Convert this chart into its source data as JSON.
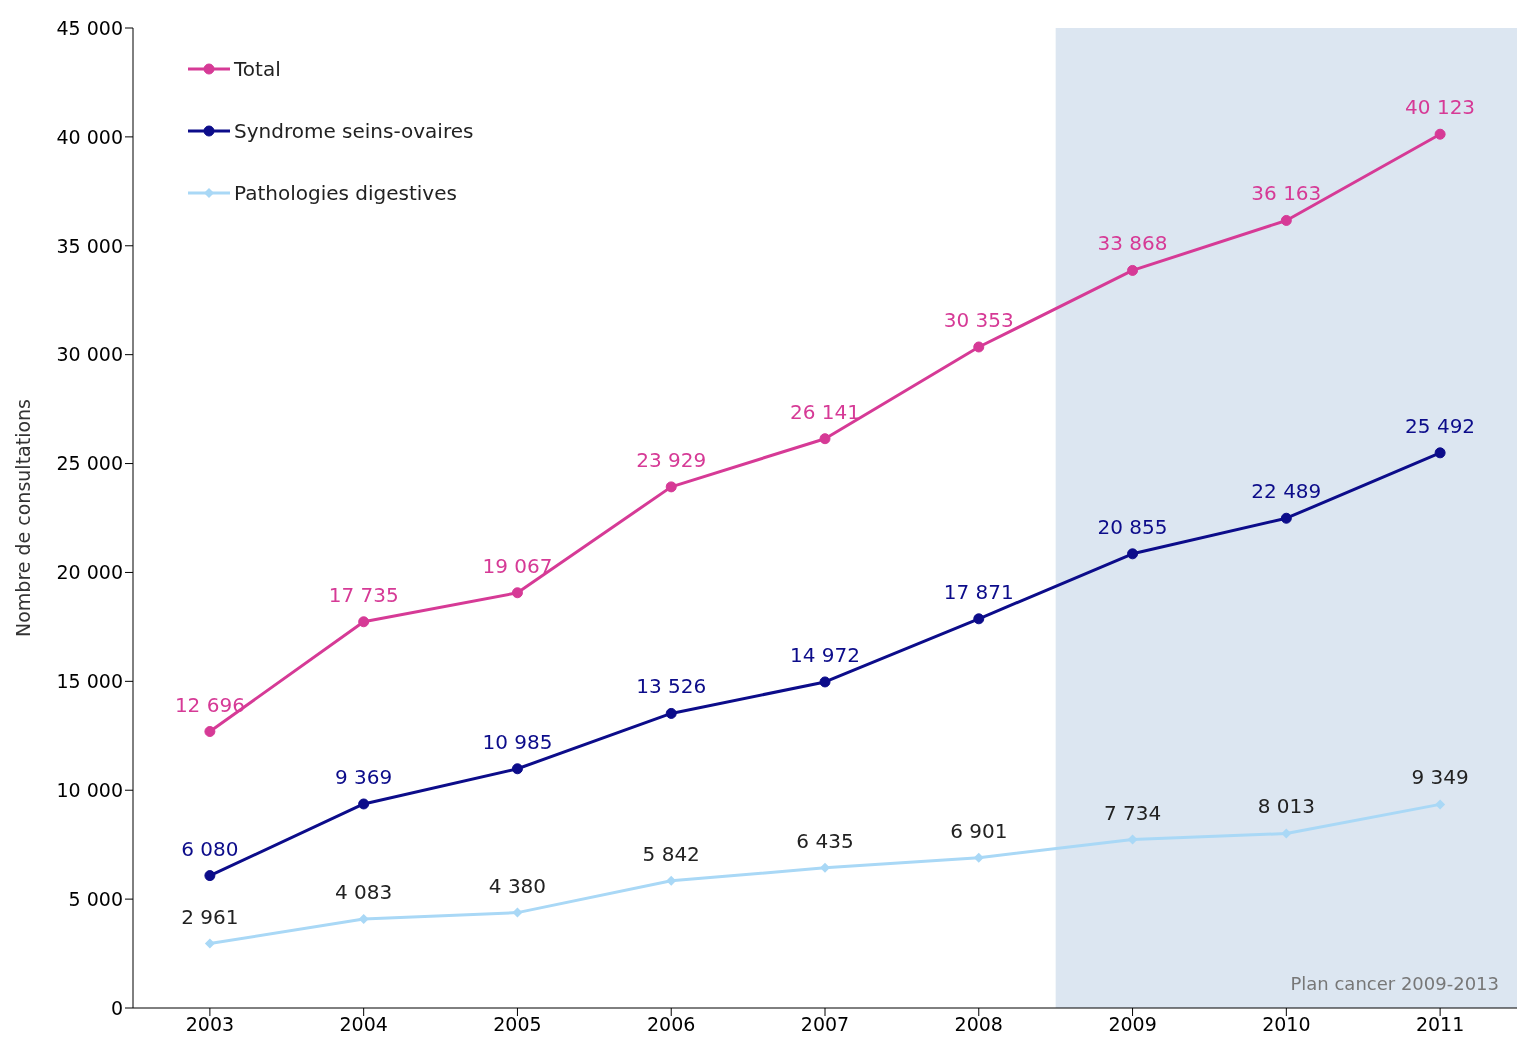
{
  "chart_data": {
    "type": "line",
    "ylabel": "Nombre de consultations",
    "x": [
      2003,
      2004,
      2005,
      2006,
      2007,
      2008,
      2009,
      2010,
      2011
    ],
    "xlim": [
      2002.5,
      2011.5
    ],
    "xticks": [
      2003,
      2004,
      2005,
      2006,
      2007,
      2008,
      2009,
      2010,
      2011
    ],
    "ylim": [
      0,
      45000
    ],
    "yticks": [
      {
        "value": 0,
        "label": "0"
      },
      {
        "value": 5000,
        "label": "5 000"
      },
      {
        "value": 10000,
        "label": "10 000"
      },
      {
        "value": 15000,
        "label": "15 000"
      },
      {
        "value": 20000,
        "label": "20 000"
      },
      {
        "value": 25000,
        "label": "25 000"
      },
      {
        "value": 30000,
        "label": "30 000"
      },
      {
        "value": 35000,
        "label": "35 000"
      },
      {
        "value": 40000,
        "label": "40 000"
      },
      {
        "value": 45000,
        "label": "45 000"
      }
    ],
    "grid": false,
    "legend": "top left",
    "line_style": "solid",
    "series": [
      {
        "name": "Total",
        "color": "#d63a96",
        "marker": "circle",
        "values": [
          12696,
          17735,
          19067,
          23929,
          26141,
          30353,
          33868,
          36163,
          40123
        ],
        "value_labels": [
          "12 696",
          "17 735",
          "19 067",
          "23 929",
          "26 141",
          "30 353",
          "33 868",
          "36 163",
          "40 123"
        ]
      },
      {
        "name": "Syndrome seins-ovaires",
        "color": "#0c0c8a",
        "marker": "circle",
        "values": [
          6080,
          9369,
          10985,
          13526,
          14972,
          17871,
          20855,
          22489,
          25492
        ],
        "value_labels": [
          "6 080",
          "9 369",
          "10 985",
          "13 526",
          "14 972",
          "17 871",
          "20 855",
          "22 489",
          "25 492"
        ]
      },
      {
        "name": "Pathologies digestives",
        "color": "#a9d8f6",
        "marker": "diamond",
        "values": [
          2961,
          4083,
          4380,
          5842,
          6435,
          6901,
          7734,
          8013,
          9349
        ],
        "value_labels": [
          "2 961",
          "4 083",
          "4 380",
          "5 842",
          "6 435",
          "6 901",
          "7 734",
          "8 013",
          "9 349"
        ]
      }
    ],
    "bands": [
      {
        "axis": "x",
        "from": 2008.5,
        "to": 2011.5,
        "label": "Plan cancer  2009-2013",
        "color": "#dce6f1"
      }
    ]
  }
}
